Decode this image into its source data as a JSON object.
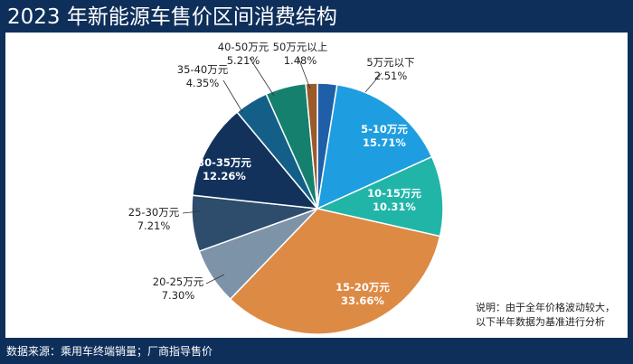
{
  "header": {
    "title": "2023 年新能源车售价区间消费结构"
  },
  "note": {
    "line1": "说明：由于全年价格波动较大，",
    "line2": "以下半年数据为基准进行分析"
  },
  "footer": {
    "source": "数据来源：乘用车终端销量；厂商指导售价"
  },
  "colors": {
    "frame": "#0e2f5a",
    "panel": "#ffffff",
    "title_text": "#ffffff"
  },
  "chart_data": {
    "type": "pie",
    "title": "2023 年新能源车售价区间消费结构",
    "value_unit": "%",
    "slices": [
      {
        "label": "5万元以下",
        "value": 2.51,
        "display": "2.51%",
        "color": "#1f5fa8"
      },
      {
        "label": "5-10万元",
        "value": 15.71,
        "display": "15.71%",
        "color": "#1e9ee0"
      },
      {
        "label": "10-15万元",
        "value": 10.31,
        "display": "10.31%",
        "color": "#21b5a8"
      },
      {
        "label": "15-20万元",
        "value": 33.66,
        "display": "33.66%",
        "color": "#dd8a45"
      },
      {
        "label": "20-25万元",
        "value": 7.3,
        "display": "7.30%",
        "color": "#7d93a8"
      },
      {
        "label": "25-30万元",
        "value": 7.21,
        "display": "7.21%",
        "color": "#2e4c6b"
      },
      {
        "label": "30-35万元",
        "value": 12.26,
        "display": "12.26%",
        "color": "#12325c"
      },
      {
        "label": "35-40万元",
        "value": 4.35,
        "display": "4.35%",
        "color": "#145f88"
      },
      {
        "label": "40-50万元",
        "value": 5.21,
        "display": "5.21%",
        "color": "#15806e"
      },
      {
        "label": "50万元以上",
        "value": 1.48,
        "display": "1.48%",
        "color": "#9a5a2a"
      }
    ],
    "start_angle_deg": 0,
    "direction": "clockwise",
    "legend": "none"
  }
}
